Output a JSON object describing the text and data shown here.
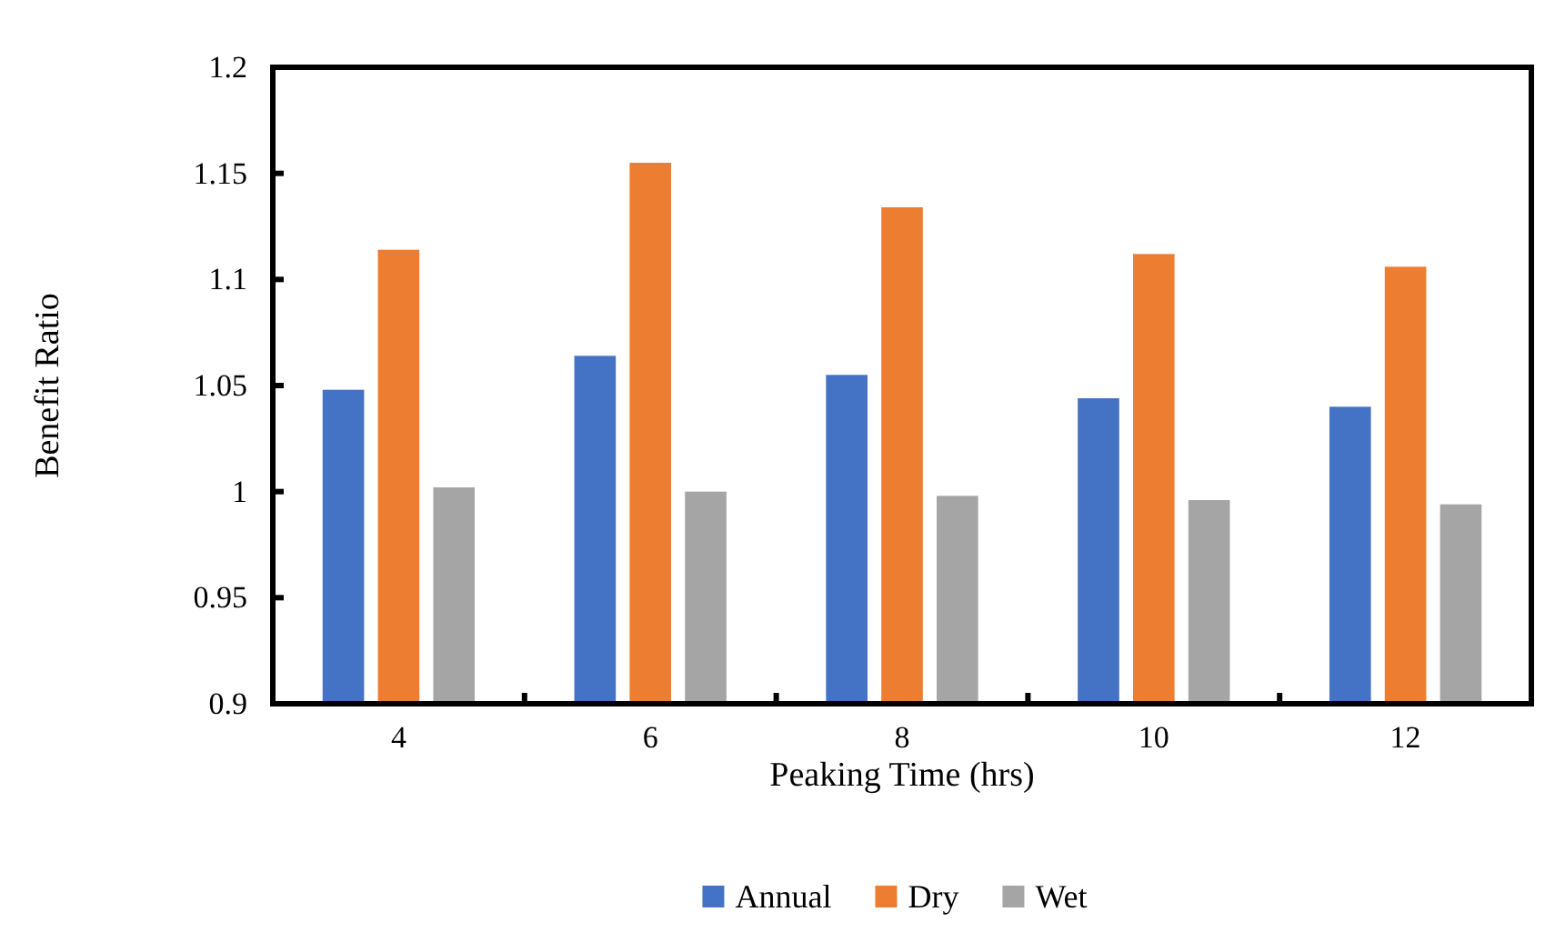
{
  "chart_data": {
    "type": "bar",
    "xlabel": "Peaking Time (hrs)",
    "ylabel": "Benefit Ratio",
    "categories": [
      "4",
      "6",
      "8",
      "10",
      "12"
    ],
    "series": [
      {
        "name": "Annual",
        "color": "#4472c4",
        "values": [
          1.048,
          1.064,
          1.055,
          1.044,
          1.04
        ]
      },
      {
        "name": "Dry",
        "color": "#ed7d31",
        "values": [
          1.114,
          1.155,
          1.134,
          1.112,
          1.106
        ]
      },
      {
        "name": "Wet",
        "color": "#a5a5a5",
        "values": [
          1.002,
          1.0,
          0.998,
          0.996,
          0.994
        ]
      }
    ],
    "ylim": [
      0.9,
      1.2
    ],
    "yticks": [
      0.9,
      0.95,
      1,
      1.05,
      1.1,
      1.15,
      1.2
    ],
    "legend": "bottom",
    "grid": false
  }
}
